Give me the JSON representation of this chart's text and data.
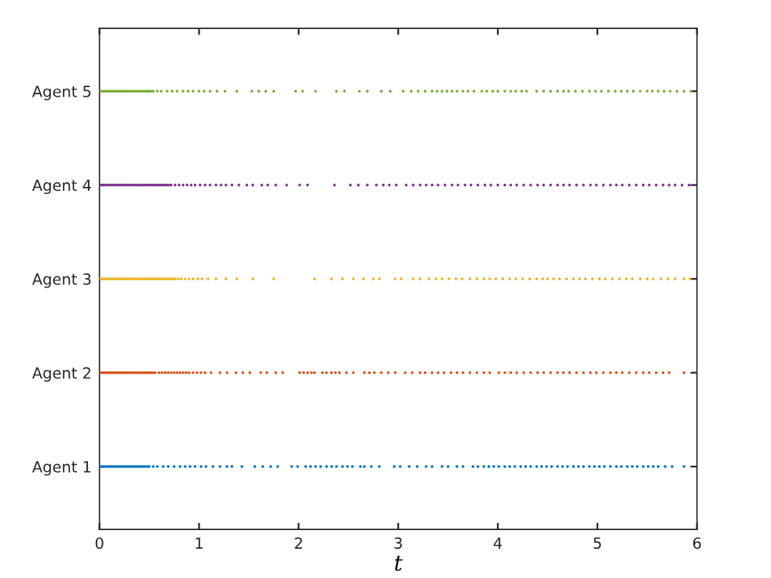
{
  "chart_data": {
    "type": "scatter",
    "orientation": "horizontal",
    "xlabel": "t",
    "marker": "circle",
    "grid": false,
    "xlim": [
      0,
      6
    ],
    "xticks": [
      0,
      1,
      2,
      3,
      4,
      5,
      6
    ],
    "categories": [
      "Agent 5",
      "Agent 4",
      "Agent 3",
      "Agent 2",
      "Agent 1"
    ],
    "series": [
      {
        "color": "#0072bd",
        "values": [
          0,
          0.02,
          0.04,
          0.06,
          0.08,
          0.1,
          0.12,
          0.14,
          0.16,
          0.18,
          0.2,
          0.22,
          0.24,
          0.26,
          0.28,
          0.3,
          0.32,
          0.34,
          0.36,
          0.38,
          0.4,
          0.42,
          0.44,
          0.46,
          0.48,
          0.5,
          0.54,
          0.58,
          0.64,
          0.69,
          0.75,
          0.81,
          0.86,
          0.91,
          0.96,
          1.02,
          1.07,
          1.14,
          1.21,
          1.28,
          1.33,
          1.43,
          1.56,
          1.64,
          1.72,
          1.79,
          1.93,
          1.99,
          2.07,
          2.12,
          2.17,
          2.22,
          2.28,
          2.33,
          2.38,
          2.44,
          2.49,
          2.54,
          2.62,
          2.66,
          2.73,
          2.81,
          2.96,
          3.02,
          3.11,
          3.19,
          3.28,
          3.34,
          3.44,
          3.5,
          3.59,
          3.65,
          3.75,
          3.8,
          3.86,
          3.91,
          3.96,
          4.01,
          4.07,
          4.12,
          4.17,
          4.23,
          4.28,
          4.33,
          4.39,
          4.44,
          4.49,
          4.54,
          4.6,
          4.65,
          4.7,
          4.76,
          4.81,
          4.86,
          4.92,
          4.97,
          5.02,
          5.07,
          5.13,
          5.19,
          5.24,
          5.3,
          5.35,
          5.4,
          5.46,
          5.51,
          5.56,
          5.61,
          5.68,
          5.75,
          5.87
        ],
        "x": [
          "Agent 1",
          "Agent 1",
          "Agent 1",
          "Agent 1",
          "Agent 1",
          "Agent 1",
          "Agent 1",
          "Agent 1",
          "Agent 1",
          "Agent 1",
          "Agent 1",
          "Agent 1",
          "Agent 1",
          "Agent 1",
          "Agent 1",
          "Agent 1",
          "Agent 1",
          "Agent 1",
          "Agent 1",
          "Agent 1",
          "Agent 1",
          "Agent 1",
          "Agent 1",
          "Agent 1",
          "Agent 1",
          "Agent 1",
          "Agent 1",
          "Agent 1",
          "Agent 1",
          "Agent 1",
          "Agent 1",
          "Agent 1",
          "Agent 1",
          "Agent 1",
          "Agent 1",
          "Agent 1",
          "Agent 1",
          "Agent 1",
          "Agent 1",
          "Agent 1",
          "Agent 1",
          "Agent 1",
          "Agent 1",
          "Agent 1",
          "Agent 1",
          "Agent 1",
          "Agent 1",
          "Agent 1",
          "Agent 1",
          "Agent 1",
          "Agent 1",
          "Agent 1",
          "Agent 1",
          "Agent 1",
          "Agent 1",
          "Agent 1",
          "Agent 1",
          "Agent 1",
          "Agent 1",
          "Agent 1",
          "Agent 1",
          "Agent 1",
          "Agent 1",
          "Agent 1",
          "Agent 1",
          "Agent 1",
          "Agent 1",
          "Agent 1",
          "Agent 1",
          "Agent 1",
          "Agent 1",
          "Agent 1",
          "Agent 1",
          "Agent 1",
          "Agent 1",
          "Agent 1",
          "Agent 1",
          "Agent 1",
          "Agent 1",
          "Agent 1",
          "Agent 1",
          "Agent 1",
          "Agent 1",
          "Agent 1",
          "Agent 1",
          "Agent 1",
          "Agent 1",
          "Agent 1",
          "Agent 1",
          "Agent 1",
          "Agent 1",
          "Agent 1",
          "Agent 1",
          "Agent 1",
          "Agent 1",
          "Agent 1",
          "Agent 1",
          "Agent 1",
          "Agent 1",
          "Agent 1",
          "Agent 1",
          "Agent 1",
          "Agent 1",
          "Agent 1",
          "Agent 1",
          "Agent 1",
          "Agent 1",
          "Agent 1",
          "Agent 1",
          "Agent 1",
          "Agent 1"
        ]
      },
      {
        "color": "#d95319",
        "values": [
          0,
          0.02,
          0.04,
          0.06,
          0.08,
          0.1,
          0.12,
          0.14,
          0.16,
          0.18,
          0.2,
          0.22,
          0.24,
          0.26,
          0.28,
          0.3,
          0.32,
          0.34,
          0.36,
          0.38,
          0.4,
          0.42,
          0.44,
          0.46,
          0.48,
          0.5,
          0.52,
          0.54,
          0.56,
          0.6,
          0.63,
          0.66,
          0.69,
          0.72,
          0.75,
          0.78,
          0.81,
          0.84,
          0.87,
          0.9,
          0.94,
          0.98,
          1.02,
          1.06,
          1.12,
          1.21,
          1.28,
          1.37,
          1.44,
          1.51,
          1.62,
          1.68,
          1.77,
          1.84,
          2.01,
          2.05,
          2.09,
          2.13,
          2.16,
          2.24,
          2.28,
          2.33,
          2.37,
          2.41,
          2.48,
          2.55,
          2.66,
          2.71,
          2.76,
          2.83,
          2.9,
          2.97,
          3.07,
          3.14,
          3.22,
          3.27,
          3.34,
          3.4,
          3.46,
          3.53,
          3.59,
          3.65,
          3.72,
          3.79,
          3.86,
          3.92,
          4.01,
          4.07,
          4.13,
          4.19,
          4.26,
          4.33,
          4.4,
          4.46,
          4.53,
          4.6,
          4.66,
          4.72,
          4.79,
          4.86,
          4.93,
          4.99,
          5.06,
          5.13,
          5.19,
          5.25,
          5.32,
          5.39,
          5.46,
          5.52,
          5.59,
          5.66,
          5.72,
          5.87
        ],
        "x": [
          "Agent 2",
          "Agent 2",
          "Agent 2",
          "Agent 2",
          "Agent 2",
          "Agent 2",
          "Agent 2",
          "Agent 2",
          "Agent 2",
          "Agent 2",
          "Agent 2",
          "Agent 2",
          "Agent 2",
          "Agent 2",
          "Agent 2",
          "Agent 2",
          "Agent 2",
          "Agent 2",
          "Agent 2",
          "Agent 2",
          "Agent 2",
          "Agent 2",
          "Agent 2",
          "Agent 2",
          "Agent 2",
          "Agent 2",
          "Agent 2",
          "Agent 2",
          "Agent 2",
          "Agent 2",
          "Agent 2",
          "Agent 2",
          "Agent 2",
          "Agent 2",
          "Agent 2",
          "Agent 2",
          "Agent 2",
          "Agent 2",
          "Agent 2",
          "Agent 2",
          "Agent 2",
          "Agent 2",
          "Agent 2",
          "Agent 2",
          "Agent 2",
          "Agent 2",
          "Agent 2",
          "Agent 2",
          "Agent 2",
          "Agent 2",
          "Agent 2",
          "Agent 2",
          "Agent 2",
          "Agent 2",
          "Agent 2",
          "Agent 2",
          "Agent 2",
          "Agent 2",
          "Agent 2",
          "Agent 2",
          "Agent 2",
          "Agent 2",
          "Agent 2",
          "Agent 2",
          "Agent 2",
          "Agent 2",
          "Agent 2",
          "Agent 2",
          "Agent 2",
          "Agent 2",
          "Agent 2",
          "Agent 2",
          "Agent 2",
          "Agent 2",
          "Agent 2",
          "Agent 2",
          "Agent 2",
          "Agent 2",
          "Agent 2",
          "Agent 2",
          "Agent 2",
          "Agent 2",
          "Agent 2",
          "Agent 2",
          "Agent 2",
          "Agent 2",
          "Agent 2",
          "Agent 2",
          "Agent 2",
          "Agent 2",
          "Agent 2",
          "Agent 2",
          "Agent 2",
          "Agent 2",
          "Agent 2",
          "Agent 2",
          "Agent 2",
          "Agent 2",
          "Agent 2",
          "Agent 2",
          "Agent 2",
          "Agent 2",
          "Agent 2",
          "Agent 2",
          "Agent 2",
          "Agent 2",
          "Agent 2",
          "Agent 2",
          "Agent 2",
          "Agent 2",
          "Agent 2",
          "Agent 2",
          "Agent 2",
          "Agent 2"
        ]
      },
      {
        "color": "#edb120",
        "values": [
          0,
          0.02,
          0.04,
          0.06,
          0.08,
          0.1,
          0.12,
          0.14,
          0.16,
          0.18,
          0.2,
          0.22,
          0.24,
          0.26,
          0.28,
          0.3,
          0.32,
          0.34,
          0.36,
          0.38,
          0.4,
          0.42,
          0.44,
          0.46,
          0.48,
          0.5,
          0.52,
          0.54,
          0.56,
          0.58,
          0.6,
          0.62,
          0.64,
          0.66,
          0.68,
          0.7,
          0.72,
          0.74,
          0.76,
          0.79,
          0.82,
          0.86,
          0.9,
          0.94,
          0.99,
          1.03,
          1.09,
          1.17,
          1.27,
          1.38,
          1.54,
          1.75,
          2.16,
          2.33,
          2.44,
          2.55,
          2.65,
          2.75,
          2.81,
          2.97,
          3.03,
          3.15,
          3.22,
          3.31,
          3.38,
          3.44,
          3.51,
          3.58,
          3.64,
          3.72,
          3.79,
          3.86,
          3.92,
          3.98,
          4.05,
          4.12,
          4.18,
          4.25,
          4.32,
          4.39,
          4.45,
          4.5,
          4.56,
          4.62,
          4.69,
          4.76,
          4.82,
          4.88,
          4.95,
          5.02,
          5.08,
          5.15,
          5.22,
          5.29,
          5.35,
          5.43,
          5.5,
          5.56,
          5.64,
          5.71,
          5.78,
          5.87,
          5.93
        ],
        "x": [
          "Agent 3",
          "Agent 3",
          "Agent 3",
          "Agent 3",
          "Agent 3",
          "Agent 3",
          "Agent 3",
          "Agent 3",
          "Agent 3",
          "Agent 3",
          "Agent 3",
          "Agent 3",
          "Agent 3",
          "Agent 3",
          "Agent 3",
          "Agent 3",
          "Agent 3",
          "Agent 3",
          "Agent 3",
          "Agent 3",
          "Agent 3",
          "Agent 3",
          "Agent 3",
          "Agent 3",
          "Agent 3",
          "Agent 3",
          "Agent 3",
          "Agent 3",
          "Agent 3",
          "Agent 3",
          "Agent 3",
          "Agent 3",
          "Agent 3",
          "Agent 3",
          "Agent 3",
          "Agent 3",
          "Agent 3",
          "Agent 3",
          "Agent 3",
          "Agent 3",
          "Agent 3",
          "Agent 3",
          "Agent 3",
          "Agent 3",
          "Agent 3",
          "Agent 3",
          "Agent 3",
          "Agent 3",
          "Agent 3",
          "Agent 3",
          "Agent 3",
          "Agent 3",
          "Agent 3",
          "Agent 3",
          "Agent 3",
          "Agent 3",
          "Agent 3",
          "Agent 3",
          "Agent 3",
          "Agent 3",
          "Agent 3",
          "Agent 3",
          "Agent 3",
          "Agent 3",
          "Agent 3",
          "Agent 3",
          "Agent 3",
          "Agent 3",
          "Agent 3",
          "Agent 3",
          "Agent 3",
          "Agent 3",
          "Agent 3",
          "Agent 3",
          "Agent 3",
          "Agent 3",
          "Agent 3",
          "Agent 3",
          "Agent 3",
          "Agent 3",
          "Agent 3",
          "Agent 3",
          "Agent 3",
          "Agent 3",
          "Agent 3",
          "Agent 3",
          "Agent 3",
          "Agent 3",
          "Agent 3",
          "Agent 3",
          "Agent 3",
          "Agent 3",
          "Agent 3",
          "Agent 3",
          "Agent 3",
          "Agent 3",
          "Agent 3",
          "Agent 3",
          "Agent 3",
          "Agent 3",
          "Agent 3",
          "Agent 3",
          "Agent 3"
        ]
      },
      {
        "color": "#7e2f8e",
        "values": [
          0,
          0.02,
          0.04,
          0.06,
          0.08,
          0.1,
          0.12,
          0.14,
          0.16,
          0.18,
          0.2,
          0.22,
          0.24,
          0.26,
          0.28,
          0.3,
          0.32,
          0.34,
          0.36,
          0.38,
          0.4,
          0.42,
          0.44,
          0.46,
          0.48,
          0.5,
          0.52,
          0.54,
          0.56,
          0.58,
          0.6,
          0.62,
          0.64,
          0.66,
          0.68,
          0.7,
          0.72,
          0.76,
          0.8,
          0.84,
          0.88,
          0.92,
          0.96,
          1.01,
          1.06,
          1.11,
          1.17,
          1.22,
          1.27,
          1.33,
          1.4,
          1.48,
          1.54,
          1.63,
          1.69,
          1.77,
          1.88,
          2.01,
          2.09,
          2.36,
          2.52,
          2.6,
          2.69,
          2.78,
          2.85,
          2.91,
          2.98,
          3.08,
          3.15,
          3.22,
          3.28,
          3.34,
          3.4,
          3.47,
          3.54,
          3.6,
          3.67,
          3.73,
          3.8,
          3.87,
          3.93,
          4.0,
          4.07,
          4.13,
          4.19,
          4.26,
          4.33,
          4.4,
          4.46,
          4.53,
          4.6,
          4.66,
          4.72,
          4.79,
          4.86,
          4.93,
          4.99,
          5.06,
          5.13,
          5.19,
          5.25,
          5.32,
          5.39,
          5.46,
          5.52,
          5.59,
          5.66,
          5.72,
          5.78,
          5.85,
          5.92
        ],
        "x": [
          "Agent 4",
          "Agent 4",
          "Agent 4",
          "Agent 4",
          "Agent 4",
          "Agent 4",
          "Agent 4",
          "Agent 4",
          "Agent 4",
          "Agent 4",
          "Agent 4",
          "Agent 4",
          "Agent 4",
          "Agent 4",
          "Agent 4",
          "Agent 4",
          "Agent 4",
          "Agent 4",
          "Agent 4",
          "Agent 4",
          "Agent 4",
          "Agent 4",
          "Agent 4",
          "Agent 4",
          "Agent 4",
          "Agent 4",
          "Agent 4",
          "Agent 4",
          "Agent 4",
          "Agent 4",
          "Agent 4",
          "Agent 4",
          "Agent 4",
          "Agent 4",
          "Agent 4",
          "Agent 4",
          "Agent 4",
          "Agent 4",
          "Agent 4",
          "Agent 4",
          "Agent 4",
          "Agent 4",
          "Agent 4",
          "Agent 4",
          "Agent 4",
          "Agent 4",
          "Agent 4",
          "Agent 4",
          "Agent 4",
          "Agent 4",
          "Agent 4",
          "Agent 4",
          "Agent 4",
          "Agent 4",
          "Agent 4",
          "Agent 4",
          "Agent 4",
          "Agent 4",
          "Agent 4",
          "Agent 4",
          "Agent 4",
          "Agent 4",
          "Agent 4",
          "Agent 4",
          "Agent 4",
          "Agent 4",
          "Agent 4",
          "Agent 4",
          "Agent 4",
          "Agent 4",
          "Agent 4",
          "Agent 4",
          "Agent 4",
          "Agent 4",
          "Agent 4",
          "Agent 4",
          "Agent 4",
          "Agent 4",
          "Agent 4",
          "Agent 4",
          "Agent 4",
          "Agent 4",
          "Agent 4",
          "Agent 4",
          "Agent 4",
          "Agent 4",
          "Agent 4",
          "Agent 4",
          "Agent 4",
          "Agent 4",
          "Agent 4",
          "Agent 4",
          "Agent 4",
          "Agent 4",
          "Agent 4",
          "Agent 4",
          "Agent 4",
          "Agent 4",
          "Agent 4",
          "Agent 4",
          "Agent 4",
          "Agent 4",
          "Agent 4",
          "Agent 4",
          "Agent 4",
          "Agent 4",
          "Agent 4",
          "Agent 4",
          "Agent 4",
          "Agent 4",
          "Agent 4"
        ]
      },
      {
        "color": "#77ac30",
        "values": [
          0,
          0.02,
          0.04,
          0.06,
          0.08,
          0.1,
          0.12,
          0.14,
          0.16,
          0.18,
          0.2,
          0.22,
          0.24,
          0.26,
          0.28,
          0.3,
          0.32,
          0.34,
          0.36,
          0.38,
          0.4,
          0.42,
          0.44,
          0.46,
          0.48,
          0.5,
          0.52,
          0.54,
          0.58,
          0.62,
          0.68,
          0.73,
          0.78,
          0.84,
          0.89,
          0.94,
          1.0,
          1.05,
          1.11,
          1.18,
          1.26,
          1.38,
          1.53,
          1.6,
          1.67,
          1.75,
          1.97,
          2.04,
          2.17,
          2.38,
          2.46,
          2.61,
          2.69,
          2.83,
          2.92,
          3.05,
          3.13,
          3.2,
          3.27,
          3.34,
          3.39,
          3.44,
          3.49,
          3.54,
          3.59,
          3.65,
          3.7,
          3.76,
          3.84,
          3.89,
          3.95,
          4.0,
          4.07,
          4.13,
          4.18,
          4.24,
          4.29,
          4.39,
          4.46,
          4.53,
          4.6,
          4.66,
          4.71,
          4.78,
          4.85,
          4.92,
          4.98,
          5.04,
          5.11,
          5.18,
          5.24,
          5.3,
          5.36,
          5.43,
          5.5,
          5.55,
          5.61,
          5.67,
          5.73,
          5.8,
          5.87,
          5.94
        ],
        "x": [
          "Agent 5",
          "Agent 5",
          "Agent 5",
          "Agent 5",
          "Agent 5",
          "Agent 5",
          "Agent 5",
          "Agent 5",
          "Agent 5",
          "Agent 5",
          "Agent 5",
          "Agent 5",
          "Agent 5",
          "Agent 5",
          "Agent 5",
          "Agent 5",
          "Agent 5",
          "Agent 5",
          "Agent 5",
          "Agent 5",
          "Agent 5",
          "Agent 5",
          "Agent 5",
          "Agent 5",
          "Agent 5",
          "Agent 5",
          "Agent 5",
          "Agent 5",
          "Agent 5",
          "Agent 5",
          "Agent 5",
          "Agent 5",
          "Agent 5",
          "Agent 5",
          "Agent 5",
          "Agent 5",
          "Agent 5",
          "Agent 5",
          "Agent 5",
          "Agent 5",
          "Agent 5",
          "Agent 5",
          "Agent 5",
          "Agent 5",
          "Agent 5",
          "Agent 5",
          "Agent 5",
          "Agent 5",
          "Agent 5",
          "Agent 5",
          "Agent 5",
          "Agent 5",
          "Agent 5",
          "Agent 5",
          "Agent 5",
          "Agent 5",
          "Agent 5",
          "Agent 5",
          "Agent 5",
          "Agent 5",
          "Agent 5",
          "Agent 5",
          "Agent 5",
          "Agent 5",
          "Agent 5",
          "Agent 5",
          "Agent 5",
          "Agent 5",
          "Agent 5",
          "Agent 5",
          "Agent 5",
          "Agent 5",
          "Agent 5",
          "Agent 5",
          "Agent 5",
          "Agent 5",
          "Agent 5",
          "Agent 5",
          "Agent 5",
          "Agent 5",
          "Agent 5",
          "Agent 5",
          "Agent 5",
          "Agent 5",
          "Agent 5",
          "Agent 5",
          "Agent 5",
          "Agent 5",
          "Agent 5",
          "Agent 5",
          "Agent 5",
          "Agent 5",
          "Agent 5",
          "Agent 5",
          "Agent 5",
          "Agent 5",
          "Agent 5",
          "Agent 5",
          "Agent 5",
          "Agent 5",
          "Agent 5",
          "Agent 5"
        ]
      }
    ]
  }
}
